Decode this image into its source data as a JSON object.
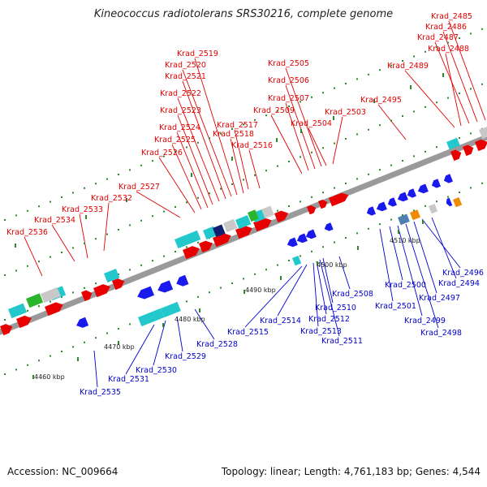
{
  "title": "Kineococcus radiotolerans SRS30216, complete genome",
  "footer": {
    "accession": "Accession: NC_009664",
    "summary": "Topology: linear; Length: 4,761,183 bp; Genes: 4,544"
  },
  "colors": {
    "forward_label": "#e00000",
    "reverse_label": "#0000cc",
    "forward_gene": "#e80000",
    "reverse_gene": "#1a1aee",
    "cds": "#22c8cc",
    "dark_navy": "#102070",
    "grey": "#c8c8c8",
    "green": "#2ab52a",
    "orange": "#f08a00",
    "axis": "#9a9a9a",
    "tick": "#2a8a2a"
  },
  "scale_labels": [
    "4460 kbp",
    "4470 kbp",
    "4480 kbp",
    "4490 kbp",
    "4500 kbp",
    "4510 kbp"
  ],
  "forward_labels": [
    "Krad_2536",
    "Krad_2534",
    "Krad_2533",
    "Krad_2532",
    "Krad_2527",
    "Krad_2526",
    "Krad_2525",
    "Krad_2524",
    "Krad_2523",
    "Krad_2522",
    "Krad_2521",
    "Krad_2520",
    "Krad_2519",
    "Krad_2518",
    "Krad_2517",
    "Krad_2516",
    "Krad_2509",
    "Krad_2507",
    "Krad_2506",
    "Krad_2505",
    "Krad_2504",
    "Krad_2503",
    "Krad_2495",
    "Krad_2489",
    "Krad_2488",
    "Krad_2487",
    "Krad_2486",
    "Krad_2485"
  ],
  "reverse_labels": [
    "Krad_2535",
    "Krad_2531",
    "Krad_2530",
    "Krad_2529",
    "Krad_2528",
    "Krad_2515",
    "Krad_2514",
    "Krad_2513",
    "Krad_2512",
    "Krad_2511",
    "Krad_2510",
    "Krad_2508",
    "Krad_2501",
    "Krad_2500",
    "Krad_2499",
    "Krad_2498",
    "Krad_2497",
    "Krad_2496",
    "Krad_2494"
  ]
}
